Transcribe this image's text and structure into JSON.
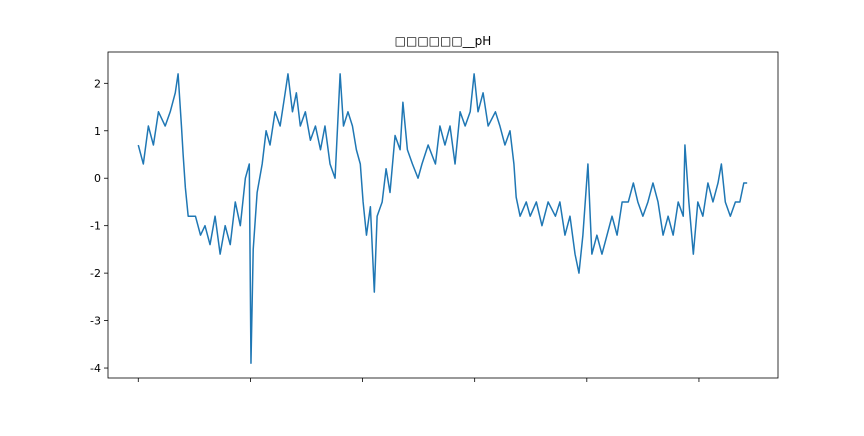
{
  "chart_data": {
    "type": "line",
    "title": "□□□□□□__pH",
    "x": [
      0,
      9,
      18,
      27,
      36,
      48,
      57,
      66,
      71,
      77,
      80,
      84,
      89,
      102,
      111,
      119,
      128,
      137,
      146,
      155,
      164,
      173,
      182,
      191,
      198,
      201,
      205,
      212,
      221,
      228,
      235,
      244,
      253,
      262,
      267,
      275,
      282,
      289,
      298,
      307,
      316,
      325,
      333,
      342,
      351,
      360,
      366,
      374,
      382,
      389,
      396,
      401,
      407,
      414,
      421,
      426,
      435,
      442,
      449,
      458,
      467,
      472,
      480,
      489,
      499,
      506,
      517,
      530,
      538,
      547,
      556,
      565,
      574,
      583,
      592,
      599,
      606,
      615,
      624,
      637,
      645,
      654,
      663,
      670,
      674,
      681,
      692,
      699,
      710,
      720,
      731,
      744,
      752,
      761,
      770,
      779,
      786,
      793,
      802,
      809,
      818,
      827,
      836,
      845,
      854,
      863,
      874,
      883,
      891,
      900,
      909,
      918,
      927,
      936,
      945,
      954,
      963,
      972,
      975,
      982,
      990,
      998,
      1007,
      1016,
      1025,
      1034,
      1040,
      1047,
      1056,
      1065,
      1073,
      1080,
      1086
    ],
    "series": [
      {
        "color": "#1f77b4",
        "values": [
          0.7,
          0.3,
          1.1,
          0.7,
          1.4,
          1.1,
          1.4,
          1.8,
          2.2,
          1.1,
          0.5,
          -0.2,
          -0.8,
          -0.8,
          -1.2,
          -1.0,
          -1.4,
          -0.8,
          -1.6,
          -1.0,
          -1.4,
          -0.5,
          -1.0,
          0.0,
          0.3,
          -3.9,
          -1.5,
          -0.3,
          0.3,
          1.0,
          0.7,
          1.4,
          1.1,
          1.8,
          2.2,
          1.4,
          1.8,
          1.1,
          1.4,
          0.8,
          1.1,
          0.6,
          1.1,
          0.3,
          0.0,
          2.2,
          1.1,
          1.4,
          1.1,
          0.6,
          0.3,
          -0.5,
          -1.2,
          -0.6,
          -2.4,
          -0.8,
          -0.5,
          0.2,
          -0.3,
          0.9,
          0.6,
          1.6,
          0.6,
          0.3,
          0.0,
          0.3,
          0.7,
          0.3,
          1.1,
          0.7,
          1.1,
          0.3,
          1.4,
          1.1,
          1.4,
          2.2,
          1.4,
          1.8,
          1.1,
          1.4,
          1.1,
          0.7,
          1.0,
          0.3,
          -0.4,
          -0.8,
          -0.5,
          -0.8,
          -0.5,
          -1.0,
          -0.5,
          -0.8,
          -0.5,
          -1.2,
          -0.8,
          -1.6,
          -2.0,
          -1.2,
          0.3,
          -1.6,
          -1.2,
          -1.6,
          -1.2,
          -0.8,
          -1.2,
          -0.5,
          -0.5,
          -0.1,
          -0.5,
          -0.8,
          -0.5,
          -0.1,
          -0.5,
          -1.2,
          -0.8,
          -1.2,
          -0.5,
          -0.8,
          0.7,
          -0.5,
          -1.6,
          -0.5,
          -0.8,
          -0.1,
          -0.5,
          -0.1,
          0.3,
          -0.5,
          -0.8,
          -0.5,
          -0.5,
          -0.1,
          -0.1
        ]
      }
    ],
    "xlim": [
      -54,
      1141
    ],
    "xticks": [
      0,
      200,
      400,
      600,
      800,
      1000
    ],
    "ylim": [
      -4.21,
      2.66
    ],
    "yticks": [
      -4,
      -3,
      -2,
      -1,
      0,
      1,
      2
    ]
  }
}
